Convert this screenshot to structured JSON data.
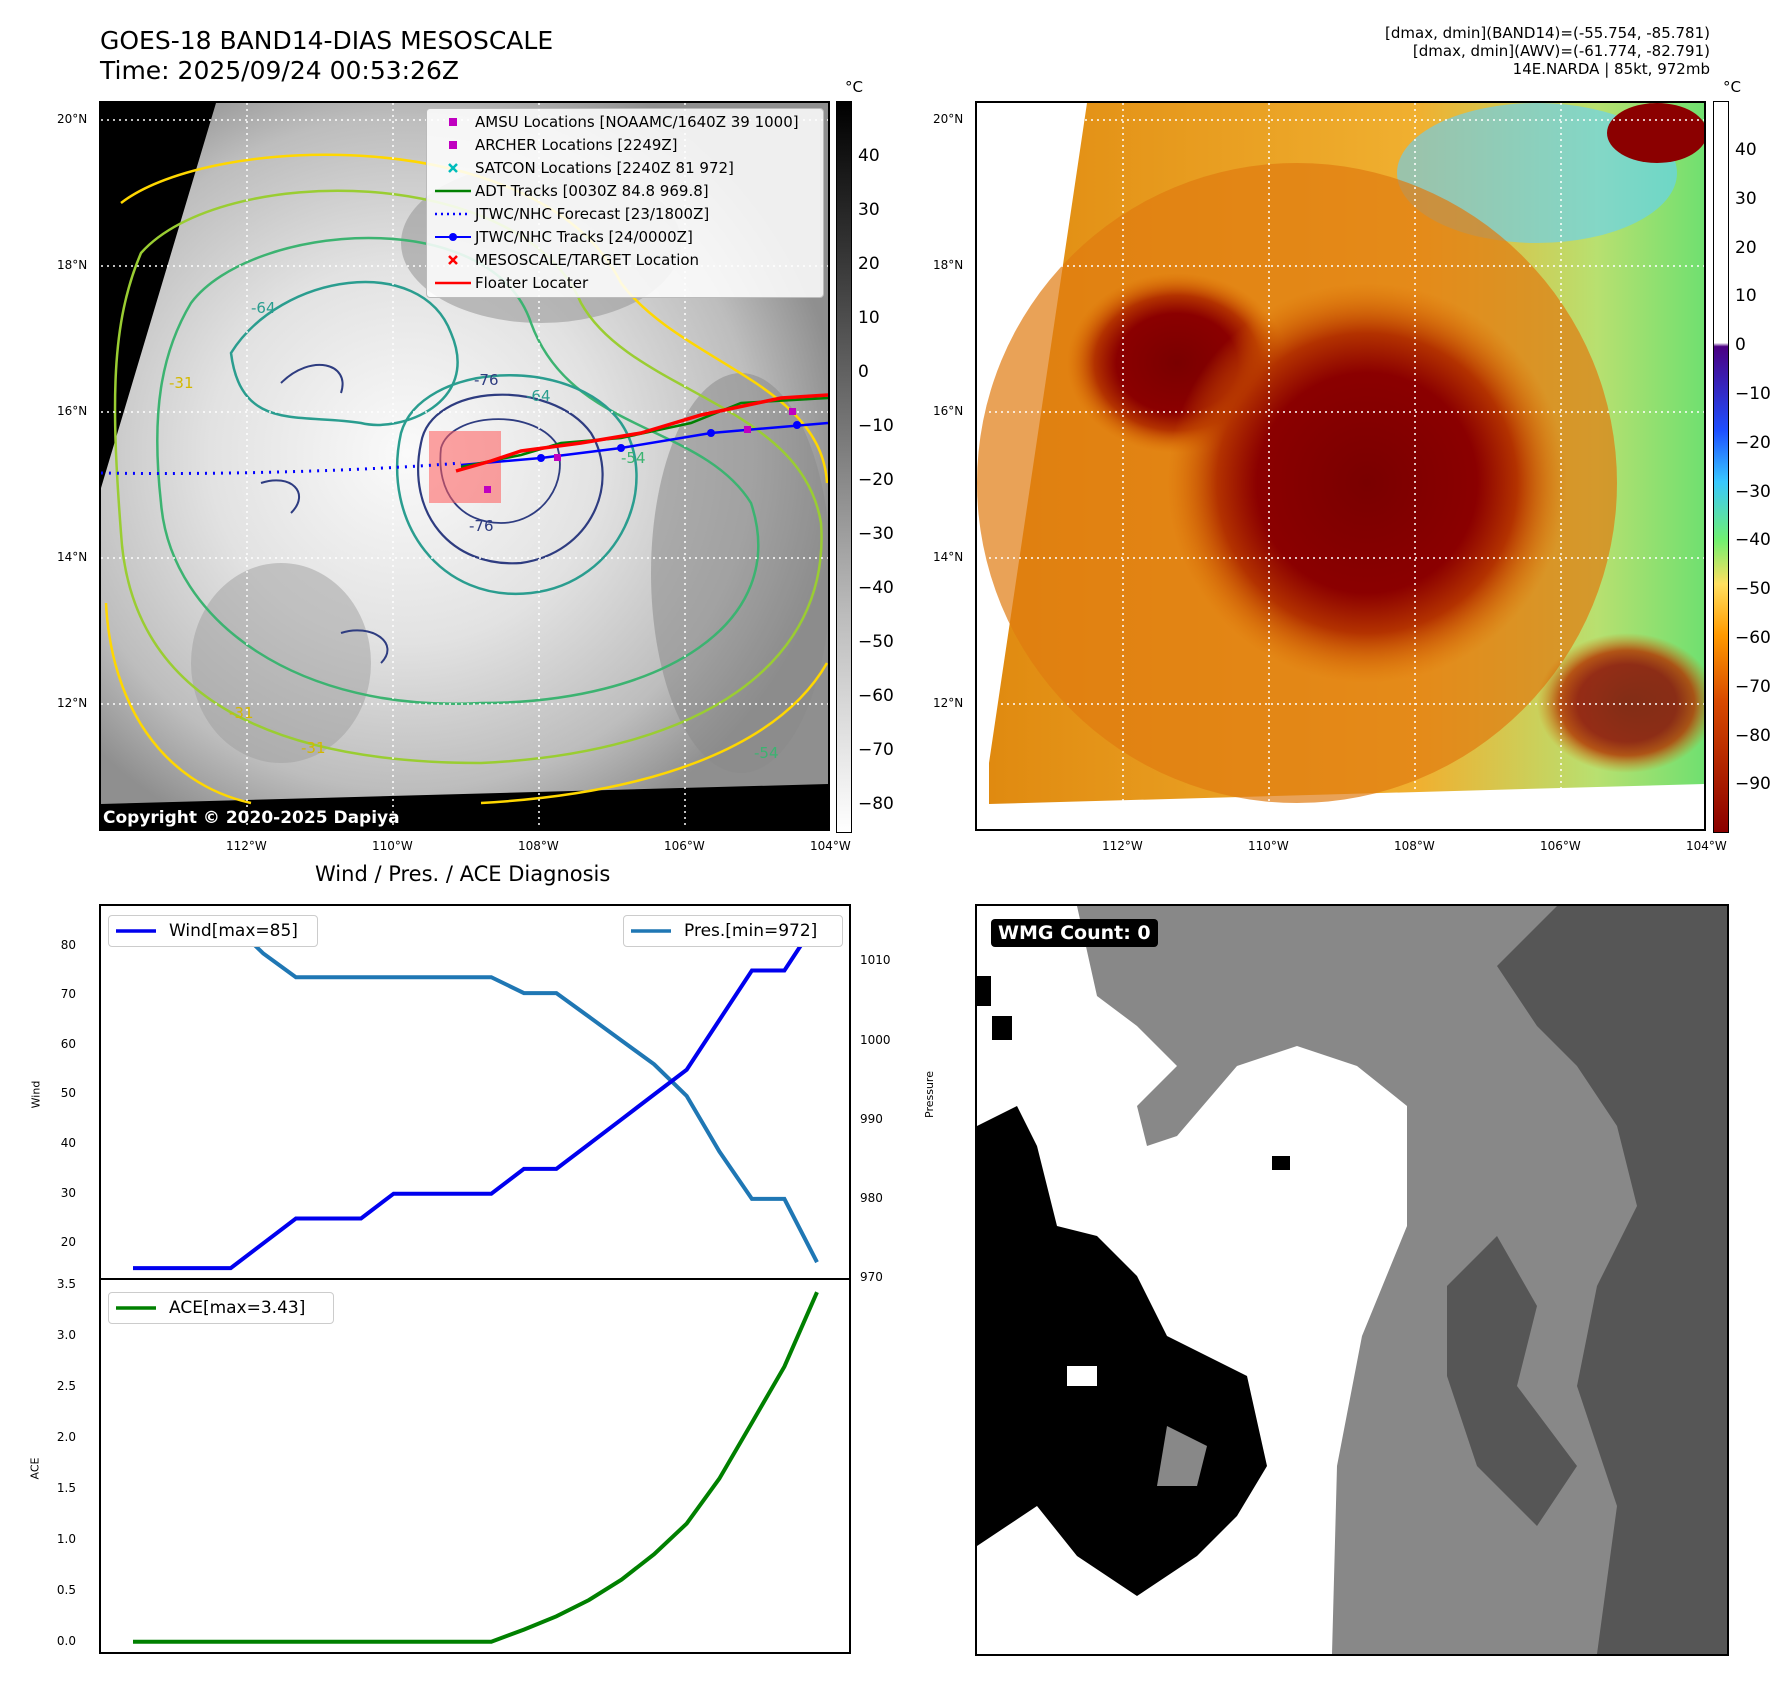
{
  "header": {
    "title": "GOES-18 BAND14-DIAS MESOSCALE",
    "time": "Time: 2025/09/24 00:53:26Z",
    "info_lines": [
      "[dmax, dmin](BAND14)=(-55.754, -85.781)",
      "[dmax, dmin](AWV)=(-61.774, -82.791)",
      "14E.NARDA | 85kt, 972mb"
    ]
  },
  "map": {
    "lat_labels": [
      "20°N",
      "18°N",
      "16°N",
      "14°N",
      "12°N"
    ],
    "lon_labels": [
      "112°W",
      "110°W",
      "108°W",
      "106°W",
      "104°W"
    ],
    "copyright": "Copyright © 2020-2025 Dapiya",
    "contour_labels": [
      "-76",
      "-76",
      "-64",
      "-64",
      "-54",
      "-54",
      "-31",
      "-31",
      "-31"
    ],
    "legend": [
      {
        "label": "AMSU Locations [NOAAMC/1640Z 39 1000]",
        "color": "#c000c0",
        "symbol": "square"
      },
      {
        "label": "ARCHER Locations [2249Z]",
        "color": "#c000c0",
        "symbol": "square"
      },
      {
        "label": "SATCON Locations [2240Z 81 972]",
        "color": "#00bcbc",
        "symbol": "x"
      },
      {
        "label": "ADT Tracks [0030Z 84.8 969.8]",
        "color": "#008000",
        "symbol": "line"
      },
      {
        "label": "JTWC/NHC Forecast [23/1800Z]",
        "color": "#0000ff",
        "symbol": "dotted"
      },
      {
        "label": "JTWC/NHC Tracks [24/0000Z]",
        "color": "#0000ff",
        "symbol": "line-dot"
      },
      {
        "label": "MESOSCALE/TARGET Location",
        "color": "#ff0000",
        "symbol": "x"
      },
      {
        "label": "Floater Locater",
        "color": "#ff0000",
        "symbol": "line"
      }
    ],
    "colorbar_unit": "°C",
    "colorbar_ticks": [
      "40",
      "30",
      "20",
      "10",
      "0",
      "−10",
      "−20",
      "−30",
      "−40",
      "−50",
      "−60",
      "−70",
      "−80"
    ]
  },
  "map2": {
    "colorbar_unit": "°C",
    "colorbar_ticks": [
      "40",
      "30",
      "20",
      "10",
      "0",
      "−10",
      "−20",
      "−30",
      "−40",
      "−50",
      "−60",
      "−70",
      "−80",
      "−90"
    ]
  },
  "diagnosis": {
    "title": "Wind / Pres. / ACE Diagnosis",
    "wind_label": "Wind",
    "pressure_label": "Pressure",
    "ace_label": "ACE",
    "wind_legend": "Wind[max=85]",
    "pres_legend": "Pres.[min=972]",
    "ace_legend": "ACE[max=3.43]",
    "wind_ticks": [
      "80",
      "70",
      "60",
      "50",
      "40",
      "30",
      "20"
    ],
    "pres_ticks": [
      "1010",
      "1000",
      "990",
      "980",
      "970"
    ],
    "ace_ticks": [
      "3.5",
      "3.0",
      "2.5",
      "2.0",
      "1.5",
      "1.0",
      "0.5",
      "0.0"
    ]
  },
  "wmg": {
    "label": "WMG Count: 0"
  },
  "chart_data": [
    {
      "type": "line",
      "title": "Wind / Pres. / ACE Diagnosis",
      "ylabel": "Wind",
      "ylim": [
        13,
        88
      ],
      "series": [
        {
          "name": "Wind[max=85]",
          "color": "#0000ee",
          "values": [
            15,
            15,
            15,
            15,
            20,
            25,
            25,
            25,
            30,
            30,
            30,
            30,
            35,
            35,
            40,
            45,
            50,
            55,
            65,
            75,
            75,
            85
          ]
        }
      ]
    },
    {
      "type": "line",
      "ylabel": "Pressure",
      "ylim": [
        970,
        1017
      ],
      "series": [
        {
          "name": "Pres.[min=972]",
          "color": "#1f77b4",
          "values": [
            1015,
            1015,
            1015,
            1015,
            1011,
            1008,
            1008,
            1008,
            1008,
            1008,
            1008,
            1008,
            1006,
            1006,
            1003,
            1000,
            997,
            993,
            986,
            980,
            980,
            972
          ]
        }
      ]
    },
    {
      "type": "line",
      "ylabel": "ACE",
      "ylim": [
        -0.1,
        3.55
      ],
      "series": [
        {
          "name": "ACE[max=3.43]",
          "color": "#008000",
          "values": [
            0,
            0,
            0,
            0,
            0,
            0,
            0,
            0,
            0,
            0,
            0,
            0,
            0.12,
            0.25,
            0.41,
            0.61,
            0.86,
            1.16,
            1.6,
            2.15,
            2.7,
            3.43
          ]
        }
      ]
    }
  ]
}
